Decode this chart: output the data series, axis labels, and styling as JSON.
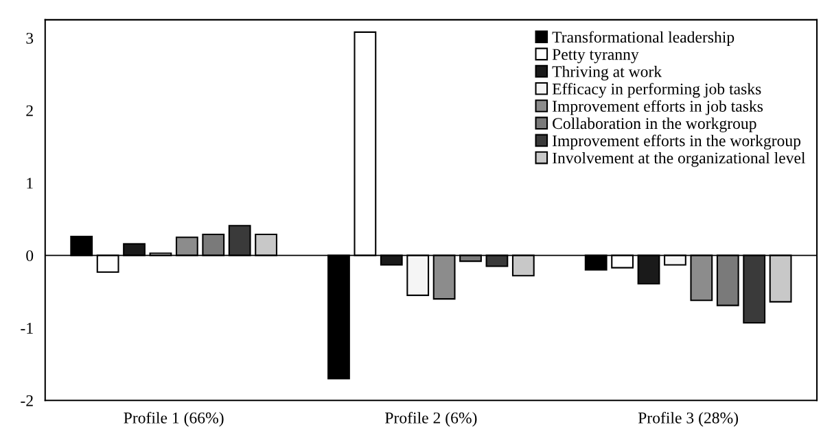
{
  "chart_data": {
    "type": "bar",
    "categories": [
      "Profile 1 (66%)",
      "Profile 2 (6%)",
      "Profile 3 (28%)"
    ],
    "series": [
      {
        "name": "Transformational leadership",
        "color": "#000000",
        "values": [
          0.26,
          -1.7,
          -0.2
        ]
      },
      {
        "name": "Petty tyranny",
        "color": "#ffffff",
        "values": [
          -0.23,
          3.08,
          -0.17
        ]
      },
      {
        "name": "Thriving at work",
        "color": "#1a1a1a",
        "values": [
          0.16,
          -0.13,
          -0.39
        ]
      },
      {
        "name": "Efficacy in performing job tasks",
        "color": "#f5f5f5",
        "values": [
          0.03,
          -0.55,
          -0.13
        ]
      },
      {
        "name": "Improvement efforts in job tasks",
        "color": "#8c8c8c",
        "values": [
          0.25,
          -0.6,
          -0.62
        ]
      },
      {
        "name": "Collaboration in the workgroup",
        "color": "#7a7a7a",
        "values": [
          0.29,
          -0.08,
          -0.69
        ]
      },
      {
        "name": "Improvement efforts in the workgroup",
        "color": "#3a3a3a",
        "values": [
          0.41,
          -0.15,
          -0.93
        ]
      },
      {
        "name": "Involvement at the organizational level",
        "color": "#c8c8c8",
        "values": [
          0.29,
          -0.28,
          -0.64
        ]
      }
    ],
    "ylim": [
      -2,
      3.25
    ],
    "yticks": [
      -2,
      -1,
      0,
      1,
      2,
      3
    ],
    "legend": "top right"
  }
}
